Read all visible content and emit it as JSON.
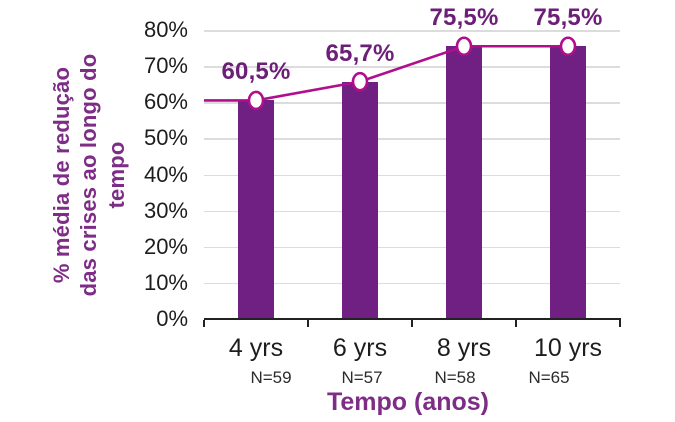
{
  "chart_data": {
    "type": "bar+line",
    "title": "",
    "xlabel": "Tempo (anos)",
    "ylabel": "% média de redução\ndas crises ao longo do\ntempo",
    "categories": [
      "4 yrs",
      "6 yrs",
      "8 yrs",
      "10 yrs"
    ],
    "n_labels": [
      "N=59",
      "N=57",
      "N=58",
      "N=65"
    ],
    "values": [
      60.5,
      65.7,
      75.5,
      75.5
    ],
    "data_labels": [
      "60,5%",
      "65,7%",
      "75,5%",
      "75,5%"
    ],
    "ylim": [
      0,
      80
    ],
    "ytick_labels": [
      "0%",
      "10%",
      "20%",
      "30%",
      "40%",
      "50%",
      "60%",
      "70%",
      "80%"
    ],
    "grid": "horizontal",
    "legend": "none",
    "line_starts_at_plot_left_edge": true,
    "colors": {
      "bar": "#702082",
      "line": "#b10e8e",
      "marker_fill": "#ffffff",
      "data_label": "#6b1f77",
      "axis_title": "#7e2d87",
      "tick_text": "#1d1d1d",
      "grid_line": "#dcdcdc",
      "axis_line": "#222222",
      "background": "#ffffff"
    }
  }
}
